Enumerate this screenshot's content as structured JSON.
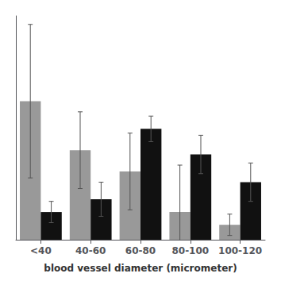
{
  "chart_data": {
    "type": "bar",
    "xlabel": "blood vessel diameter (micrometer)",
    "categories": [
      "<40",
      "40-60",
      "60-80",
      "80-100",
      "100-120"
    ],
    "series": [
      {
        "color": "#999999",
        "values": [
          0.65,
          0.42,
          0.32,
          0.13,
          0.07
        ],
        "errors": [
          0.36,
          0.18,
          0.18,
          0.22,
          0.05
        ]
      },
      {
        "color": "#111111",
        "values": [
          0.13,
          0.19,
          0.52,
          0.4,
          0.27
        ],
        "errors": [
          0.05,
          0.08,
          0.06,
          0.09,
          0.09
        ]
      }
    ],
    "ylim": [
      0,
      1.05
    ],
    "tick_labels": "x",
    "grid": false
  }
}
